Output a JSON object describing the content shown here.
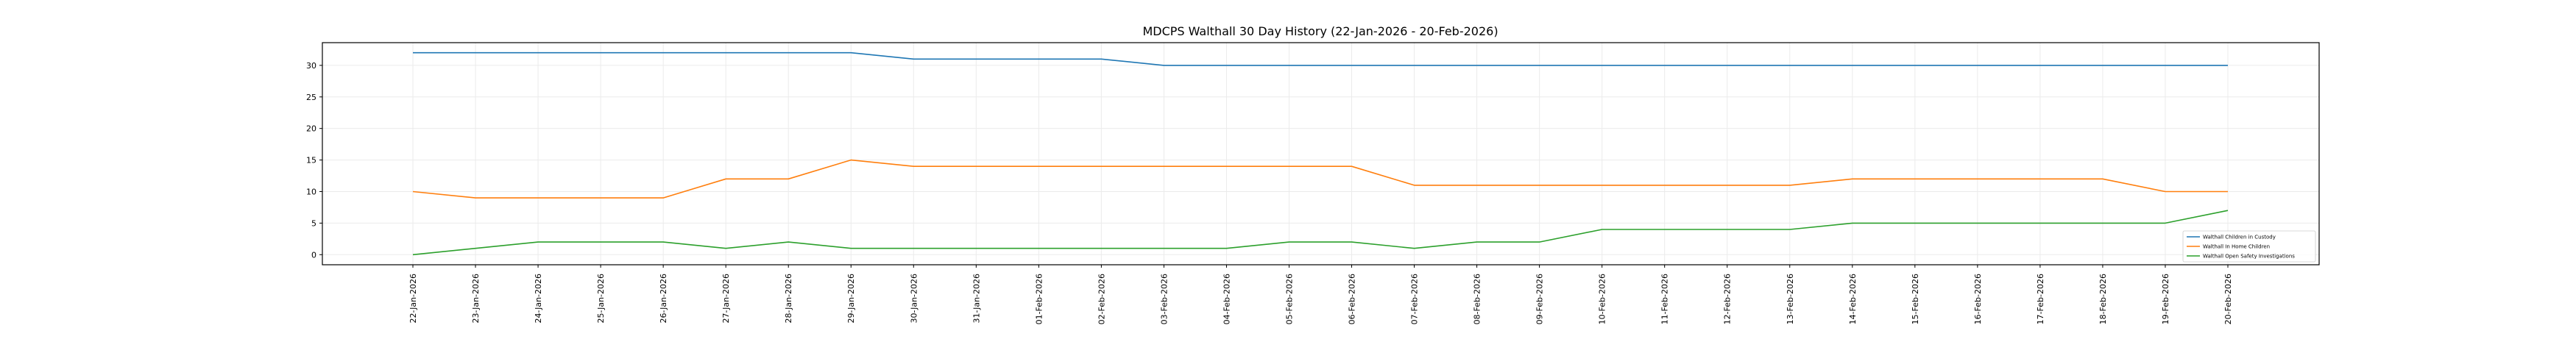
{
  "chart_data": {
    "type": "line",
    "title": "MDCPS Walthall 30 Day History (22-Jan-2026 - 20-Feb-2026)",
    "xlabel": "",
    "ylabel": "",
    "ylim": [
      -1.6,
      33.6
    ],
    "yticks": [
      0,
      5,
      10,
      15,
      20,
      25,
      30
    ],
    "grid": true,
    "legend_position": "lower-right",
    "categories": [
      "22-Jan-2026",
      "23-Jan-2026",
      "24-Jan-2026",
      "25-Jan-2026",
      "26-Jan-2026",
      "27-Jan-2026",
      "28-Jan-2026",
      "29-Jan-2026",
      "30-Jan-2026",
      "31-Jan-2026",
      "01-Feb-2026",
      "02-Feb-2026",
      "03-Feb-2026",
      "04-Feb-2026",
      "05-Feb-2026",
      "06-Feb-2026",
      "07-Feb-2026",
      "08-Feb-2026",
      "09-Feb-2026",
      "10-Feb-2026",
      "11-Feb-2026",
      "12-Feb-2026",
      "13-Feb-2026",
      "14-Feb-2026",
      "15-Feb-2026",
      "16-Feb-2026",
      "17-Feb-2026",
      "18-Feb-2026",
      "19-Feb-2026",
      "20-Feb-2026"
    ],
    "series": [
      {
        "name": "Walthall Children in Custody",
        "color": "#1f77b4",
        "values": [
          32,
          32,
          32,
          32,
          32,
          32,
          32,
          32,
          31,
          31,
          31,
          31,
          30,
          30,
          30,
          30,
          30,
          30,
          30,
          30,
          30,
          30,
          30,
          30,
          30,
          30,
          30,
          30,
          30,
          30
        ]
      },
      {
        "name": "Walthall In Home Children",
        "color": "#ff7f0e",
        "values": [
          10,
          9,
          9,
          9,
          9,
          12,
          12,
          15,
          14,
          14,
          14,
          14,
          14,
          14,
          14,
          14,
          11,
          11,
          11,
          11,
          11,
          11,
          11,
          12,
          12,
          12,
          12,
          12,
          10,
          10
        ]
      },
      {
        "name": "Walthall Open Safety Investigations",
        "color": "#2ca02c",
        "values": [
          0,
          1,
          2,
          2,
          2,
          1,
          2,
          1,
          1,
          1,
          1,
          1,
          1,
          1,
          2,
          2,
          1,
          2,
          2,
          4,
          4,
          4,
          4,
          5,
          5,
          5,
          5,
          5,
          5,
          7
        ]
      }
    ]
  }
}
